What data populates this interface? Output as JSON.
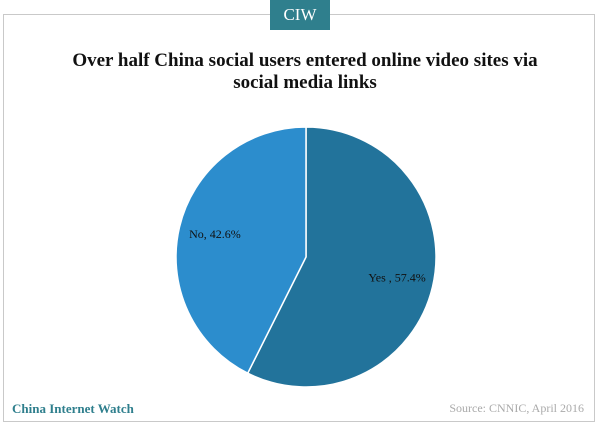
{
  "badge": "CIW",
  "footer": {
    "brand": "China Internet Watch",
    "source": "Source: CNNIC, April 2016"
  },
  "chart_data": {
    "type": "pie",
    "title": "Over half China social users  entered online video sites via social media links",
    "values": [
      57.4,
      42.6
    ],
    "value_labels": [
      "Yes , 57.4%",
      "No, 42.6%"
    ],
    "colors": [
      "#22739b",
      "#2c8dcd"
    ]
  }
}
